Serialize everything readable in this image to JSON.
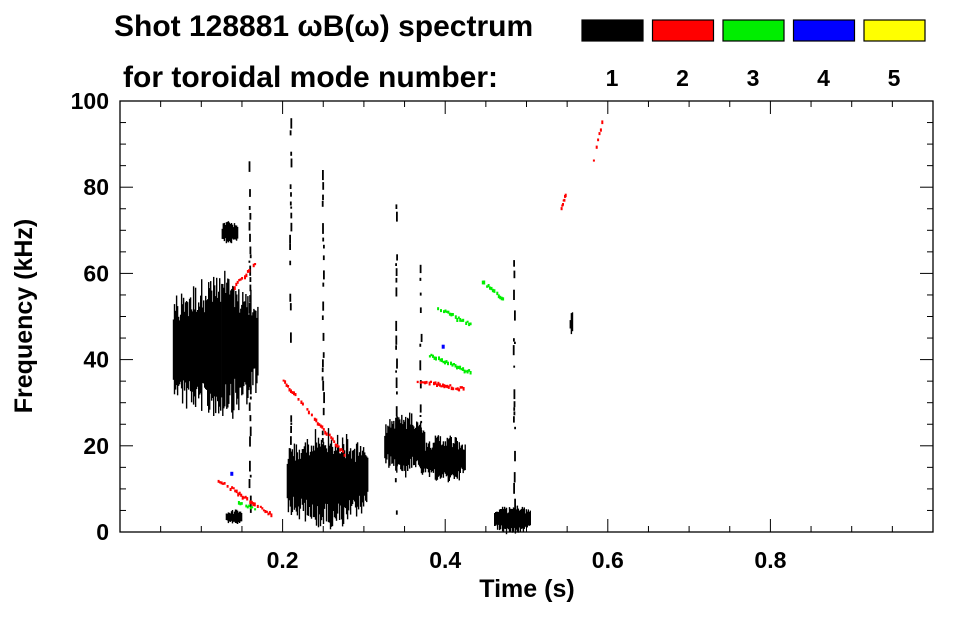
{
  "chart_data": {
    "type": "heatmap",
    "title_line1": "Shot 128881 ωB(ω) spectrum",
    "title_line2": "for toroidal mode number:",
    "xlabel": "Time (s)",
    "ylabel": "Frequency (kHz)",
    "xlim": [
      0.0,
      1.0
    ],
    "ylim": [
      0,
      100
    ],
    "x_ticks": [
      {
        "value": 0.2,
        "label": "0.2"
      },
      {
        "value": 0.4,
        "label": "0.4"
      },
      {
        "value": 0.6,
        "label": "0.6"
      },
      {
        "value": 0.8,
        "label": "0.8"
      }
    ],
    "x_minor_step": 0.05,
    "y_ticks": [
      {
        "value": 0,
        "label": "0"
      },
      {
        "value": 20,
        "label": "20"
      },
      {
        "value": 40,
        "label": "40"
      },
      {
        "value": 60,
        "label": "60"
      },
      {
        "value": 80,
        "label": "80"
      },
      {
        "value": 100,
        "label": "100"
      }
    ],
    "y_minor_step": 5,
    "legend": {
      "placement": "top-right",
      "entries": [
        {
          "label": "1",
          "color": "#000000"
        },
        {
          "label": "2",
          "color": "#ff0000"
        },
        {
          "label": "3",
          "color": "#00ee00"
        },
        {
          "label": "4",
          "color": "#0000ff"
        },
        {
          "label": "5",
          "color": "#ffff00"
        }
      ]
    },
    "features": [
      {
        "mode": "1",
        "kind": "blob",
        "t": [
          0.065,
          0.17
        ],
        "f": [
          28,
          58
        ]
      },
      {
        "mode": "1",
        "kind": "blob",
        "t": [
          0.125,
          0.145
        ],
        "f": [
          67,
          72
        ]
      },
      {
        "mode": "1",
        "kind": "blob",
        "t": [
          0.13,
          0.15
        ],
        "f": [
          2,
          5
        ]
      },
      {
        "mode": "1",
        "kind": "blob",
        "t": [
          0.205,
          0.305
        ],
        "f": [
          2,
          22
        ]
      },
      {
        "mode": "1",
        "kind": "blob",
        "t": [
          0.325,
          0.375
        ],
        "f": [
          14,
          27
        ]
      },
      {
        "mode": "1",
        "kind": "blob",
        "t": [
          0.37,
          0.425
        ],
        "f": [
          12,
          22
        ]
      },
      {
        "mode": "1",
        "kind": "blob",
        "t": [
          0.46,
          0.505
        ],
        "f": [
          0,
          6
        ]
      },
      {
        "mode": "1",
        "kind": "blob",
        "t": [
          0.553,
          0.557
        ],
        "f": [
          46,
          51
        ]
      },
      {
        "mode": "1",
        "kind": "line",
        "t": [
          0.21,
          0.21
        ],
        "f": [
          10,
          96
        ]
      },
      {
        "mode": "1",
        "kind": "line",
        "t": [
          0.25,
          0.25
        ],
        "f": [
          10,
          84
        ]
      },
      {
        "mode": "1",
        "kind": "line",
        "t": [
          0.16,
          0.16
        ],
        "f": [
          5,
          86
        ]
      },
      {
        "mode": "1",
        "kind": "line",
        "t": [
          0.34,
          0.34
        ],
        "f": [
          5,
          76
        ]
      },
      {
        "mode": "1",
        "kind": "line",
        "t": [
          0.485,
          0.485
        ],
        "f": [
          5,
          66
        ]
      },
      {
        "mode": "1",
        "kind": "line",
        "t": [
          0.37,
          0.37
        ],
        "f": [
          20,
          62
        ]
      },
      {
        "mode": "2",
        "kind": "chirp",
        "t": [
          0.2,
          0.275
        ],
        "f": [
          35,
          18
        ]
      },
      {
        "mode": "2",
        "kind": "chirp",
        "t": [
          0.14,
          0.165
        ],
        "f": [
          57,
          62
        ]
      },
      {
        "mode": "2",
        "kind": "chirp",
        "t": [
          0.365,
          0.425
        ],
        "f": [
          35,
          33
        ]
      },
      {
        "mode": "2",
        "kind": "chirp",
        "t": [
          0.12,
          0.185
        ],
        "f": [
          12,
          4
        ]
      },
      {
        "mode": "2",
        "kind": "chirp",
        "t": [
          0.58,
          0.592
        ],
        "f": [
          85,
          95
        ]
      },
      {
        "mode": "2",
        "kind": "chirp",
        "t": [
          0.542,
          0.547
        ],
        "f": [
          75,
          78
        ]
      },
      {
        "mode": "3",
        "kind": "chirp",
        "t": [
          0.38,
          0.43
        ],
        "f": [
          41,
          37
        ]
      },
      {
        "mode": "3",
        "kind": "chirp",
        "t": [
          0.39,
          0.43
        ],
        "f": [
          52,
          48
        ]
      },
      {
        "mode": "3",
        "kind": "chirp",
        "t": [
          0.445,
          0.47
        ],
        "f": [
          58,
          54
        ]
      },
      {
        "mode": "3",
        "kind": "chirp",
        "t": [
          0.145,
          0.165
        ],
        "f": [
          7,
          5
        ]
      },
      {
        "mode": "4",
        "kind": "dot",
        "t": [
          0.395,
          0.4
        ],
        "f": [
          42,
          44
        ]
      },
      {
        "mode": "4",
        "kind": "dot",
        "t": [
          0.135,
          0.14
        ],
        "f": [
          13,
          14
        ]
      }
    ]
  }
}
